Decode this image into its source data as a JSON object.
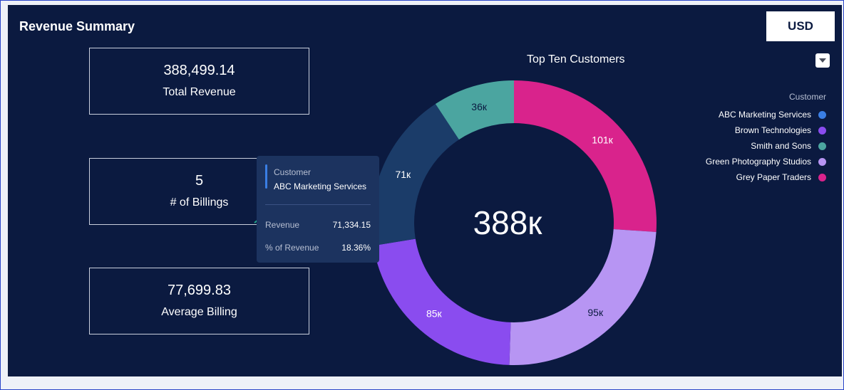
{
  "header": {
    "title": "Revenue Summary",
    "currency_button": "USD"
  },
  "cards": [
    {
      "value": "388,499.14",
      "label": "Total Revenue"
    },
    {
      "value": "5",
      "label": "# of Billings"
    },
    {
      "value": "77,699.83",
      "label": "Average Billing"
    }
  ],
  "chart_data": {
    "type": "pie",
    "title": "Top Ten Customers",
    "center_label": "388к",
    "legend_title": "Customer",
    "legend_position": "right",
    "slices": [
      {
        "label": "Grey Paper Traders",
        "value": 101,
        "display": "101к",
        "color": "#d9238c",
        "text_color": "#ffffff"
      },
      {
        "label": "Green Photography Studios",
        "value": 95,
        "display": "95к",
        "color": "#b795f3",
        "text_color": "#0b1a40"
      },
      {
        "label": "Brown Technologies",
        "value": 85,
        "display": "85к",
        "color": "#8a4cef",
        "text_color": "#ffffff"
      },
      {
        "label": "ABC Marketing Services",
        "value": 71,
        "display": "71к",
        "color": "#1b3c69",
        "text_color": "#ffffff"
      },
      {
        "label": "Smith and Sons",
        "value": 36,
        "display": "36к",
        "color": "#4ba5a0",
        "text_color": "#0b1a40"
      }
    ],
    "legend": [
      {
        "label": "ABC Marketing Services",
        "color": "#3a7ee4"
      },
      {
        "label": "Brown Technologies",
        "color": "#8a4cef"
      },
      {
        "label": "Smith and Sons",
        "color": "#4ba5a0"
      },
      {
        "label": "Green Photography Studios",
        "color": "#b795f3"
      },
      {
        "label": "Grey Paper Traders",
        "color": "#d9238c"
      }
    ]
  },
  "tooltip": {
    "heading": "Customer",
    "customer": "ABC Marketing Services",
    "revenue_label": "Revenue",
    "revenue_value": "71,334.15",
    "pct_label": "% of Revenue",
    "pct_value": "18.36%"
  },
  "icons": {
    "dropdown": "chevron-down-icon"
  }
}
